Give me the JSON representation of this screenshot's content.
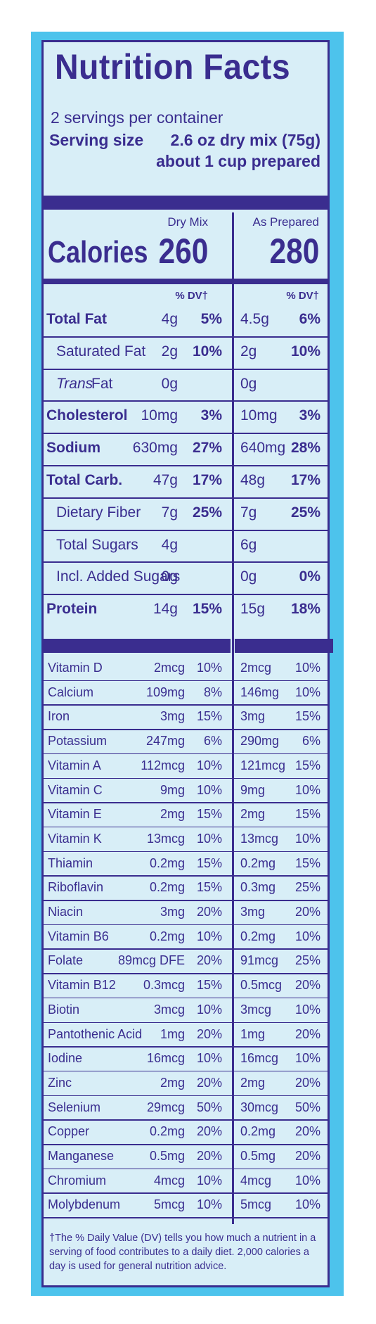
{
  "title": "Nutrition Facts",
  "servings_per_container": "2 servings per container",
  "serving_size_label": "Serving size",
  "serving_size_value": "2.6 oz dry mix (75g)",
  "serving_size_prepared": "about 1 cup prepared",
  "columns": {
    "dry": "Dry Mix",
    "prepared": "As Prepared"
  },
  "calories": {
    "label": "Calories",
    "dry": "260",
    "prepared": "280"
  },
  "dv_header": "% DV†",
  "nutrients": [
    {
      "name": "Total Fat",
      "style": "b",
      "dry_amt": "4g",
      "dry_dv": "5%",
      "prep_amt": "4.5g",
      "prep_dv": "6%"
    },
    {
      "name": "Saturated Fat",
      "style": "ind",
      "dry_amt": "2g",
      "dry_dv": "10%",
      "prep_amt": "2g",
      "prep_dv": "10%"
    },
    {
      "name": "Fat",
      "prefix": "Trans",
      "style": "ind",
      "dry_amt": "0g",
      "dry_dv": "",
      "prep_amt": "0g",
      "prep_dv": ""
    },
    {
      "name": "Cholesterol",
      "style": "b",
      "dry_amt": "10mg",
      "dry_dv": "3%",
      "prep_amt": "10mg",
      "prep_dv": "3%"
    },
    {
      "name": "Sodium",
      "style": "b",
      "dry_amt": "630mg",
      "dry_dv": "27%",
      "prep_amt": "640mg",
      "prep_dv": "28%"
    },
    {
      "name": "Total Carb.",
      "style": "b",
      "dry_amt": "47g",
      "dry_dv": "17%",
      "prep_amt": "48g",
      "prep_dv": "17%"
    },
    {
      "name": "Dietary Fiber",
      "style": "ind",
      "dry_amt": "7g",
      "dry_dv": "25%",
      "prep_amt": "7g",
      "prep_dv": "25%"
    },
    {
      "name": "Total Sugars",
      "style": "ind",
      "dry_amt": "4g",
      "dry_dv": "",
      "prep_amt": "6g",
      "prep_dv": ""
    },
    {
      "name": "Incl. Added Sugars",
      "style": "ind2",
      "dry_amt": "0g",
      "dry_dv": "",
      "prep_amt": "0g",
      "prep_dv": "0%"
    },
    {
      "name": "Protein",
      "style": "b",
      "dry_amt": "14g",
      "dry_dv": "15%",
      "prep_amt": "15g",
      "prep_dv": "18%"
    }
  ],
  "vitamins": [
    {
      "name": "Vitamin D",
      "dry_amt": "2mcg",
      "dry_dv": "10%",
      "prep_amt": "2mcg",
      "prep_dv": "10%"
    },
    {
      "name": "Calcium",
      "dry_amt": "109mg",
      "dry_dv": "8%",
      "prep_amt": "146mg",
      "prep_dv": "10%"
    },
    {
      "name": "Iron",
      "dry_amt": "3mg",
      "dry_dv": "15%",
      "prep_amt": "3mg",
      "prep_dv": "15%"
    },
    {
      "name": "Potassium",
      "dry_amt": "247mg",
      "dry_dv": "6%",
      "prep_amt": "290mg",
      "prep_dv": "6%"
    },
    {
      "name": "Vitamin A",
      "dry_amt": "112mcg",
      "dry_dv": "10%",
      "prep_amt": "121mcg",
      "prep_dv": "15%"
    },
    {
      "name": "Vitamin C",
      "dry_amt": "9mg",
      "dry_dv": "10%",
      "prep_amt": "9mg",
      "prep_dv": "10%"
    },
    {
      "name": "Vitamin E",
      "dry_amt": "2mg",
      "dry_dv": "15%",
      "prep_amt": "2mg",
      "prep_dv": "15%"
    },
    {
      "name": "Vitamin K",
      "dry_amt": "13mcg",
      "dry_dv": "10%",
      "prep_amt": "13mcg",
      "prep_dv": "10%"
    },
    {
      "name": "Thiamin",
      "dry_amt": "0.2mg",
      "dry_dv": "15%",
      "prep_amt": "0.2mg",
      "prep_dv": "15%"
    },
    {
      "name": "Riboflavin",
      "dry_amt": "0.2mg",
      "dry_dv": "15%",
      "prep_amt": "0.3mg",
      "prep_dv": "25%"
    },
    {
      "name": "Niacin",
      "dry_amt": "3mg",
      "dry_dv": "20%",
      "prep_amt": "3mg",
      "prep_dv": "20%"
    },
    {
      "name": "Vitamin B6",
      "dry_amt": "0.2mg",
      "dry_dv": "10%",
      "prep_amt": "0.2mg",
      "prep_dv": "10%"
    },
    {
      "name": "Folate",
      "dry_amt": "89mcg DFE",
      "dry_dv": "20%",
      "prep_amt": "91mcg",
      "prep_dv": "25%"
    },
    {
      "name": "Vitamin B12",
      "dry_amt": "0.3mcg",
      "dry_dv": "15%",
      "prep_amt": "0.5mcg",
      "prep_dv": "20%"
    },
    {
      "name": "Biotin",
      "dry_amt": "3mcg",
      "dry_dv": "10%",
      "prep_amt": "3mcg",
      "prep_dv": "10%"
    },
    {
      "name": "Pantothenic Acid",
      "dry_amt": "1mg",
      "dry_dv": "20%",
      "prep_amt": "1mg",
      "prep_dv": "20%"
    },
    {
      "name": "Iodine",
      "dry_amt": "16mcg",
      "dry_dv": "10%",
      "prep_amt": "16mcg",
      "prep_dv": "10%"
    },
    {
      "name": "Zinc",
      "dry_amt": "2mg",
      "dry_dv": "20%",
      "prep_amt": "2mg",
      "prep_dv": "20%"
    },
    {
      "name": "Selenium",
      "dry_amt": "29mcg",
      "dry_dv": "50%",
      "prep_amt": "30mcg",
      "prep_dv": "50%"
    },
    {
      "name": "Copper",
      "dry_amt": "0.2mg",
      "dry_dv": "20%",
      "prep_amt": "0.2mg",
      "prep_dv": "20%"
    },
    {
      "name": "Manganese",
      "dry_amt": "0.5mg",
      "dry_dv": "20%",
      "prep_amt": "0.5mg",
      "prep_dv": "20%"
    },
    {
      "name": "Chromium",
      "dry_amt": "4mcg",
      "dry_dv": "10%",
      "prep_amt": "4mcg",
      "prep_dv": "10%"
    },
    {
      "name": "Molybdenum",
      "dry_amt": "5mcg",
      "dry_dv": "10%",
      "prep_amt": "5mcg",
      "prep_dv": "10%"
    }
  ],
  "footnote": "†The % Daily Value (DV) tells you how much a nutrient in a serving of food contributes to a daily diet. 2,000 calories a day is used for general nutrition advice.",
  "colors": {
    "ink": "#3a2d8f",
    "panel": "#d8eef7",
    "box": "#4dc3ec"
  }
}
